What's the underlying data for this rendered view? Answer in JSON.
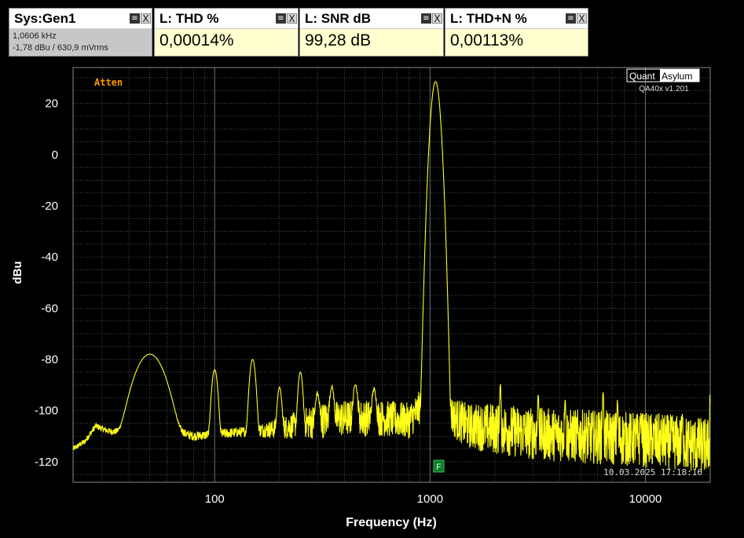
{
  "generator": {
    "title": "Sys:Gen1",
    "line1": "1,0606 kHz",
    "line2": "-1,78 dBu  / 630,9 mVrms"
  },
  "measurements": [
    {
      "title": "L: THD %",
      "value": "0,00014%"
    },
    {
      "title": "L: SNR dB",
      "value": "99,28 dB"
    },
    {
      "title": "L: THD+N %",
      "value": "0,00113%"
    }
  ],
  "panel_buttons": {
    "menu": "≡",
    "close": "X"
  },
  "branding": {
    "logo_left": "Quant",
    "logo_right": "Asylum",
    "version": "QA40x v1.201"
  },
  "atten_label": "Atten",
  "timestamp": "10.03.2025 17:18:16",
  "marker_label": "F",
  "colors": {
    "trace": "#ffff1a",
    "grid": "#6e6e6e",
    "background": "#000000",
    "text": "#ffffff",
    "atten": "#ff9900",
    "marker": "#0b7d2a"
  },
  "chart_data": {
    "type": "line",
    "xlabel": "Frequency (Hz)",
    "ylabel": "dBu",
    "xscale": "log",
    "xlim": [
      22,
      20000
    ],
    "ylim": [
      -128,
      34
    ],
    "x_ticks": [
      100,
      1000,
      10000
    ],
    "x_tick_labels": [
      "100",
      "1000",
      "10000"
    ],
    "y_ticks": [
      20,
      0,
      -20,
      -40,
      -60,
      -80,
      -100,
      -120
    ],
    "y_tick_labels": [
      "20",
      "0",
      "-20",
      "-40",
      "-60",
      "-80",
      "-100",
      "-120"
    ],
    "grid": true,
    "series": [
      {
        "color": "#ffff1a",
        "baseline": [
          [
            22,
            -115
          ],
          [
            25,
            -112
          ],
          [
            28,
            -106
          ],
          [
            32,
            -108
          ],
          [
            38,
            -109
          ],
          [
            44,
            -112
          ],
          [
            48,
            -108
          ],
          [
            55,
            -110
          ],
          [
            65,
            -108
          ],
          [
            80,
            -110
          ],
          [
            110,
            -109
          ],
          [
            150,
            -108
          ],
          [
            200,
            -107
          ],
          [
            300,
            -104
          ],
          [
            400,
            -103
          ],
          [
            600,
            -103
          ],
          [
            800,
            -104
          ],
          [
            900,
            -99
          ],
          [
            1000,
            -90
          ],
          [
            1130,
            -95
          ],
          [
            1250,
            -102
          ],
          [
            1500,
            -106
          ],
          [
            2000,
            -107
          ],
          [
            3000,
            -109
          ],
          [
            5000,
            -110
          ],
          [
            8000,
            -111
          ],
          [
            12000,
            -112
          ],
          [
            20000,
            -114
          ]
        ],
        "noise_dB": [
          [
            22,
            1
          ],
          [
            150,
            2
          ],
          [
            300,
            7
          ],
          [
            1000,
            7
          ],
          [
            1300,
            8
          ],
          [
            2000,
            10
          ],
          [
            20000,
            11
          ]
        ],
        "peaks": [
          {
            "f": 50,
            "level": -78,
            "width_oct": 0.12
          },
          {
            "f": 100,
            "level": -84,
            "width_oct": 0.025
          },
          {
            "f": 150,
            "level": -80,
            "width_oct": 0.025
          },
          {
            "f": 200,
            "level": -91,
            "width_oct": 0.02
          },
          {
            "f": 250,
            "level": -85,
            "width_oct": 0.02
          },
          {
            "f": 300,
            "level": -94,
            "width_oct": 0.02
          },
          {
            "f": 350,
            "level": -91,
            "width_oct": 0.02
          },
          {
            "f": 450,
            "level": -90,
            "width_oct": 0.02
          },
          {
            "f": 550,
            "level": -92,
            "width_oct": 0.02
          },
          {
            "f": 1060.6,
            "level": 28.5,
            "width_oct": 0.03
          },
          {
            "f": 2120,
            "level": -90,
            "width_oct": 0.006
          },
          {
            "f": 3180,
            "level": -94,
            "width_oct": 0.006
          },
          {
            "f": 4240,
            "level": -96,
            "width_oct": 0.006
          },
          {
            "f": 6360,
            "level": -93,
            "width_oct": 0.006
          },
          {
            "f": 7420,
            "level": -97,
            "width_oct": 0.006
          },
          {
            "f": 9540,
            "level": -103,
            "width_oct": 0.006
          },
          {
            "f": 14840,
            "level": -103,
            "width_oct": 0.006
          },
          {
            "f": 19950,
            "level": -94,
            "width_oct": 0.003
          }
        ],
        "skirt": {
          "f": 1060.6,
          "level": -86,
          "width_oct": 0.07
        }
      }
    ]
  }
}
